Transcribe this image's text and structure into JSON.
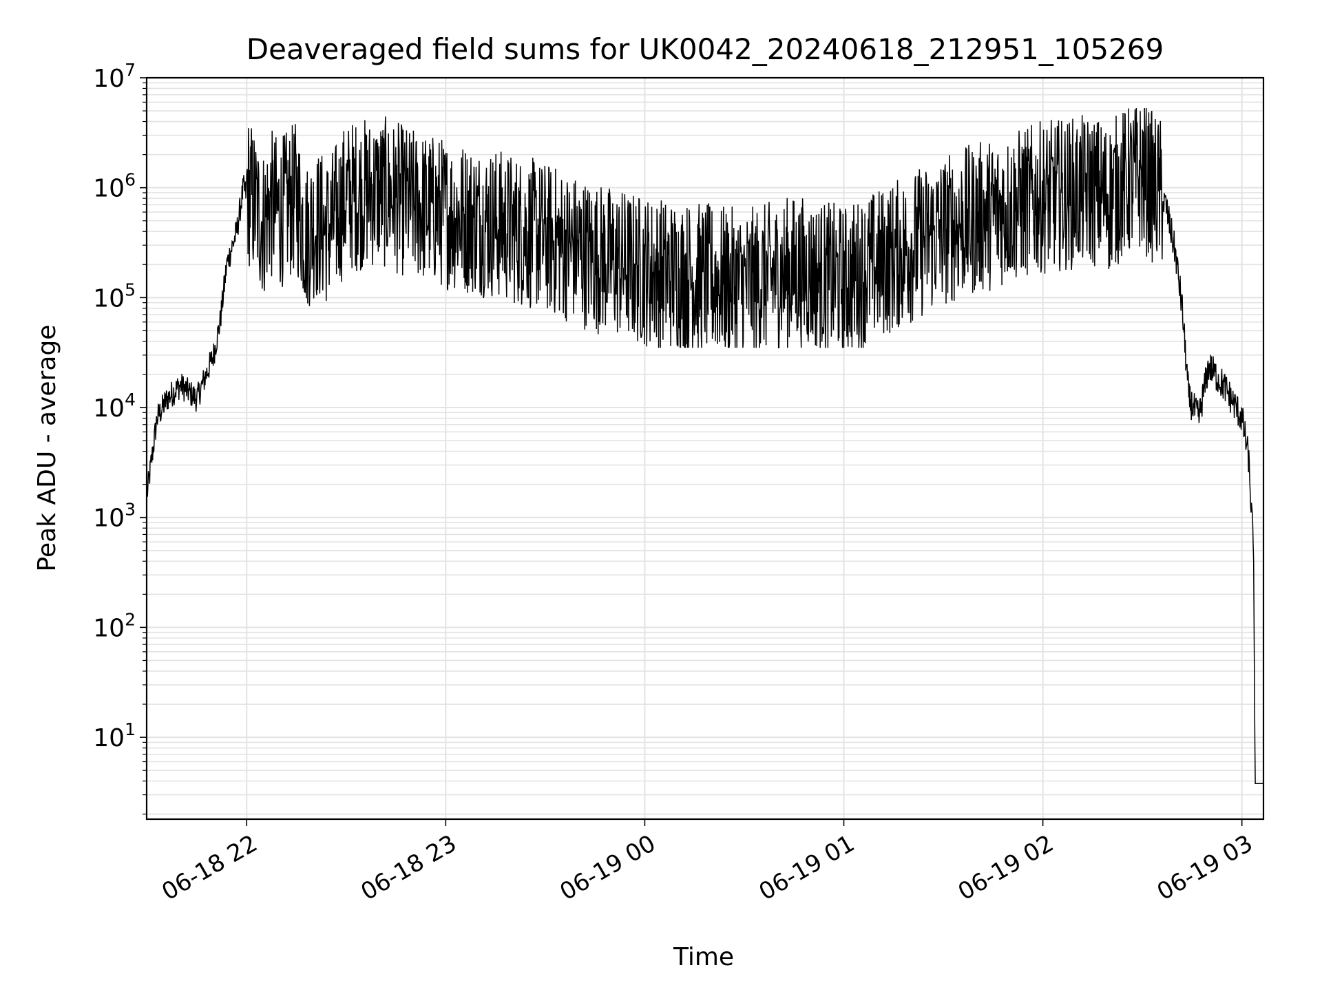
{
  "chart_data": {
    "type": "line",
    "title": "Deaveraged field sums for UK0042_20240618_212951_105269",
    "xlabel": "Time",
    "ylabel": "Peak ADU - average",
    "yscale": "log",
    "ylim": [
      1.8,
      10000000
    ],
    "xlim": [
      "2024-06-18 21:29:51",
      "2024-06-19 03:06:30"
    ],
    "grid": true,
    "legend": "none",
    "line_color": "#000000",
    "x_ticks": [
      {
        "label": "06-18 22",
        "time": "2024-06-18 22:00:00"
      },
      {
        "label": "06-18 23",
        "time": "2024-06-18 23:00:00"
      },
      {
        "label": "06-19 00",
        "time": "2024-06-19 00:00:00"
      },
      {
        "label": "06-19 01",
        "time": "2024-06-19 01:00:00"
      },
      {
        "label": "06-19 02",
        "time": "2024-06-19 02:00:00"
      },
      {
        "label": "06-19 03",
        "time": "2024-06-19 03:00:00"
      }
    ],
    "y_ticks": [
      {
        "base": "10",
        "exp": "1",
        "value": 10
      },
      {
        "base": "10",
        "exp": "2",
        "value": 100
      },
      {
        "base": "10",
        "exp": "3",
        "value": 1000
      },
      {
        "base": "10",
        "exp": "4",
        "value": 10000
      },
      {
        "base": "10",
        "exp": "5",
        "value": 100000
      },
      {
        "base": "10",
        "exp": "6",
        "value": 1000000
      },
      {
        "base": "10",
        "exp": "7",
        "value": 10000000
      }
    ],
    "series": [
      {
        "x": [
          "2024-06-18 21:29:51",
          "2024-06-18 21:31:00",
          "2024-06-18 21:33:00",
          "2024-06-18 21:36:00",
          "2024-06-18 21:40:00",
          "2024-06-18 21:45:00",
          "2024-06-18 21:50:00",
          "2024-06-18 21:52:00",
          "2024-06-18 21:54:00",
          "2024-06-18 21:57:00",
          "2024-06-18 21:59:00",
          "2024-06-18 22:05:00",
          "2024-06-18 22:07:00",
          "2024-06-18 22:10:00",
          "2024-06-18 22:15:00",
          "2024-06-18 22:18:00",
          "2024-06-18 22:20:00",
          "2024-06-18 22:25:00",
          "2024-06-18 22:30:00",
          "2024-06-18 22:40:00",
          "2024-06-18 22:50:00",
          "2024-06-18 23:00:00",
          "2024-06-18 23:15:00",
          "2024-06-18 23:30:00",
          "2024-06-18 23:45:00",
          "2024-06-19 00:00:00",
          "2024-06-19 00:15:00",
          "2024-06-19 00:30:00",
          "2024-06-19 00:45:00",
          "2024-06-19 01:00:00",
          "2024-06-19 01:15:00",
          "2024-06-19 01:30:00",
          "2024-06-19 01:45:00",
          "2024-06-19 02:00:00",
          "2024-06-19 02:15:00",
          "2024-06-19 02:20:00",
          "2024-06-19 02:24:00",
          "2024-06-19 02:30:00",
          "2024-06-19 02:34:00",
          "2024-06-19 02:37:00",
          "2024-06-19 02:40:00",
          "2024-06-19 02:42:00",
          "2024-06-19 02:44:00",
          "2024-06-19 02:47:00",
          "2024-06-19 02:50:00",
          "2024-06-19 02:55:00",
          "2024-06-19 03:00:00",
          "2024-06-19 03:02:00",
          "2024-06-19 03:03:30",
          "2024-06-19 03:04:00",
          "2024-06-19 03:05:00",
          "2024-06-19 03:06:30"
        ],
        "y": [
          1500,
          2800,
          8000,
          12000,
          16000,
          12000,
          30000,
          60000,
          200000,
          400000,
          1000000,
          400000,
          600000,
          500000,
          700000,
          300000,
          400000,
          350000,
          700000,
          800000,
          600000,
          500000,
          400000,
          300000,
          200000,
          150000,
          130000,
          110000,
          150000,
          120000,
          200000,
          350000,
          500000,
          700000,
          800000,
          700000,
          900000,
          1100000,
          800000,
          700000,
          250000,
          80000,
          12000,
          8000,
          24000,
          15000,
          8000,
          3500,
          500,
          3.8,
          3.8,
          3.8
        ],
        "noise_from": "2024-06-18 22:00:00",
        "noise_to": "2024-06-19 02:36:00",
        "noise_peak": 5300000,
        "noise_trough": 35000
      }
    ]
  }
}
